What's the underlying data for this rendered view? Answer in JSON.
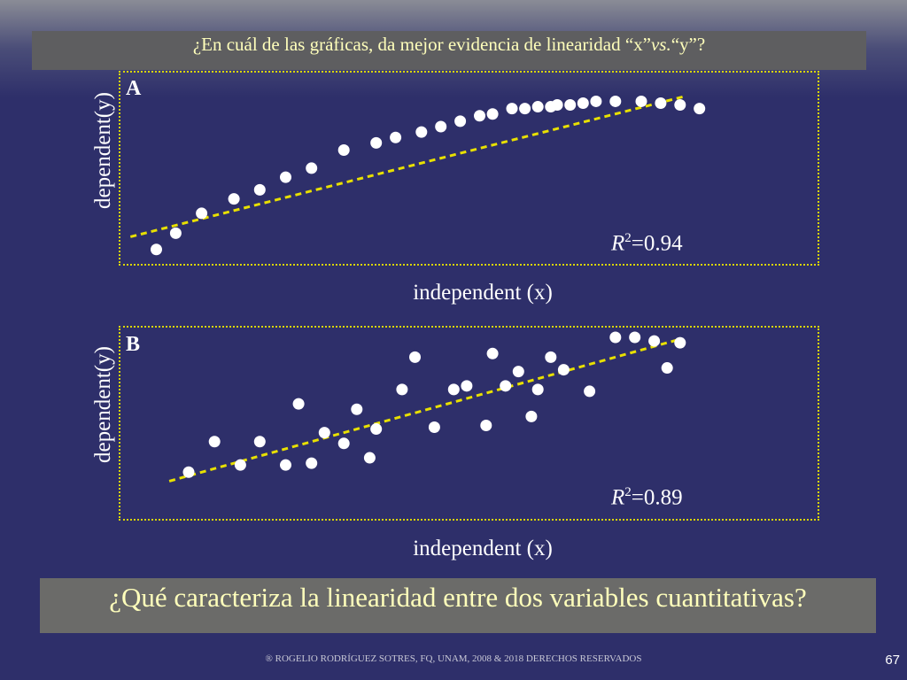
{
  "question_top": {
    "part1": "¿En cuál de las gráficas, da mejor  evidencia de linearidad “x” ",
    "vs": "vs.",
    "part2": " “y”?"
  },
  "question_bottom": "¿Qué caracteriza la linearidad entre dos variables cuantitativas?",
  "footer": "® ROGELIO RODRÍGUEZ SOTRES, FQ, UNAM, 2008 &  2018 DERECHOS RESERVADOS",
  "page_number": "67",
  "colors": {
    "points": "#ffffff",
    "trendline": "#e8e000",
    "frame": "#d9d500",
    "banner_text": "#ffffbb"
  },
  "chart_data": [
    {
      "type": "scatter",
      "panel_label": "A",
      "xlabel": "independent (x)",
      "ylabel": "dependent(y)",
      "r2_label": "R",
      "r2_exp": "2",
      "r2_value": "=0.94",
      "xlim": [
        0,
        100
      ],
      "ylim": [
        0,
        100
      ],
      "points": [
        [
          5,
          7
        ],
        [
          8,
          16
        ],
        [
          12,
          27
        ],
        [
          17,
          35
        ],
        [
          21,
          40
        ],
        [
          25,
          47
        ],
        [
          29,
          52
        ],
        [
          34,
          62
        ],
        [
          39,
          66
        ],
        [
          42,
          69
        ],
        [
          46,
          72
        ],
        [
          49,
          75
        ],
        [
          52,
          78
        ],
        [
          55,
          81
        ],
        [
          57,
          82
        ],
        [
          60,
          85
        ],
        [
          62,
          85
        ],
        [
          64,
          86
        ],
        [
          66,
          86
        ],
        [
          67,
          87
        ],
        [
          69,
          87
        ],
        [
          71,
          88
        ],
        [
          73,
          89
        ],
        [
          76,
          89
        ],
        [
          80,
          89
        ],
        [
          83,
          88
        ],
        [
          86,
          87
        ],
        [
          89,
          85
        ]
      ],
      "trendline": [
        [
          1,
          14
        ],
        [
          87,
          92
        ]
      ]
    },
    {
      "type": "scatter",
      "panel_label": "B",
      "xlabel": "independent (x)",
      "ylabel": "dependent(y)",
      "r2_label": "R",
      "r2_exp": "2",
      "r2_value": "=0.89",
      "xlim": [
        0,
        100
      ],
      "ylim": [
        0,
        100
      ],
      "points": [
        [
          10,
          24
        ],
        [
          14,
          41
        ],
        [
          18,
          28
        ],
        [
          21,
          41
        ],
        [
          25,
          28
        ],
        [
          27,
          62
        ],
        [
          29,
          29
        ],
        [
          31,
          46
        ],
        [
          34,
          40
        ],
        [
          36,
          59
        ],
        [
          38,
          32
        ],
        [
          39,
          48
        ],
        [
          43,
          70
        ],
        [
          45,
          88
        ],
        [
          48,
          49
        ],
        [
          51,
          70
        ],
        [
          53,
          72
        ],
        [
          56,
          50
        ],
        [
          57,
          90
        ],
        [
          59,
          72
        ],
        [
          61,
          80
        ],
        [
          63,
          55
        ],
        [
          64,
          70
        ],
        [
          66,
          88
        ],
        [
          68,
          81
        ],
        [
          72,
          69
        ],
        [
          76,
          99
        ],
        [
          79,
          99
        ],
        [
          82,
          97
        ],
        [
          84,
          82
        ],
        [
          86,
          96
        ]
      ],
      "trendline": [
        [
          7,
          19
        ],
        [
          86,
          98
        ]
      ]
    }
  ]
}
